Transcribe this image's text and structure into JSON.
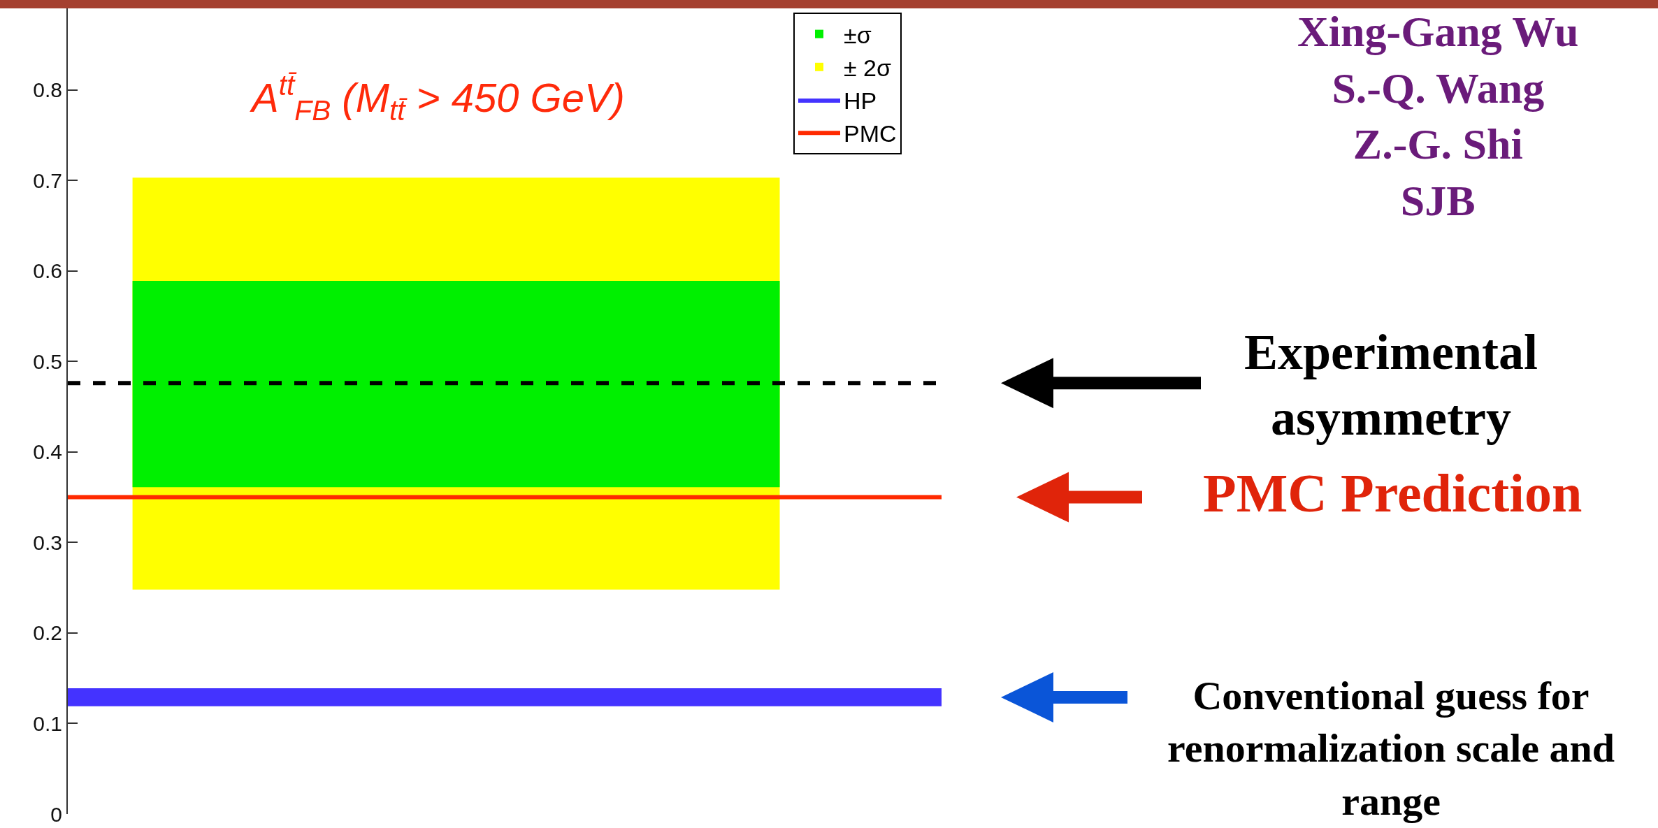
{
  "chart_data": {
    "type": "bar",
    "title": "A$^{tt̄}$$_{FB}$ (M$_{tt̄}$ > 450 GeV)",
    "categories": [
      null
    ],
    "series": [
      {
        "name": "±σ",
        "color": "#00f000",
        "values": [
          0.228
        ],
        "base": [
          0.361
        ]
      },
      {
        "name": "± 2σ",
        "color": "#ffff00",
        "values": [
          0.455
        ],
        "base": [
          0.248
        ]
      }
    ],
    "ylim": [
      0,
      0.89
    ],
    "yticks": [
      0,
      0.1,
      0.2,
      0.3,
      0.4,
      0.5,
      0.6,
      0.7,
      0.8
    ],
    "legend": "top right",
    "tick_labels": "y",
    "ref_lines": [
      {
        "axis": "y",
        "value": 0.476,
        "color": "#000000",
        "line_style": "dashed"
      },
      {
        "axis": "y",
        "value": 0.35,
        "label": "PMC",
        "color": "#ff2a00",
        "line_style": "solid"
      }
    ],
    "bands": [
      {
        "axis": "y",
        "from": 0.119,
        "to": 0.139,
        "label": "HP",
        "color": "#4433ff"
      }
    ],
    "annotations": [
      "Experimental asymmetry",
      "PMC Prediction",
      "Conventional guess for renormalization scale and range",
      "Xing-Gang Wu\nS.-Q. Wang\nZ.-G. Shi\nSJB"
    ]
  }
}
